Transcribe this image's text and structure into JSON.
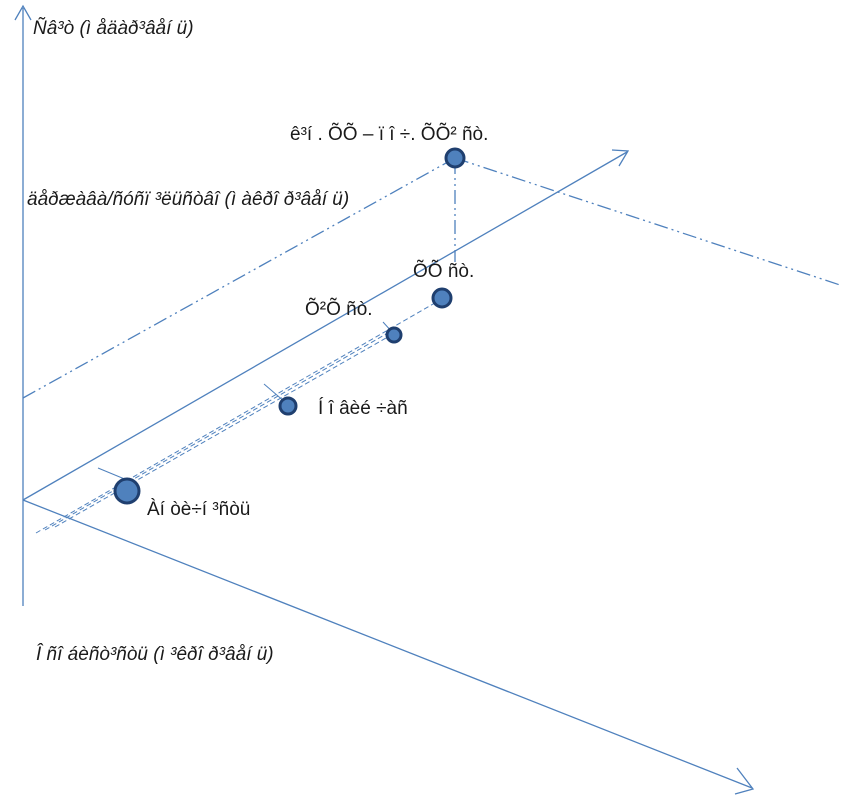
{
  "axes": {
    "y_label": "Ñâ³ò (ì åäàð³âåí ü)",
    "x_label": "Î ñî áèñò³ñòü (ì ³êðî ð³âåí ü)",
    "diagonal_label": "äåðæàâà/ñóñï ³ëüñòâî (ì àêðî ð³âåí ü)"
  },
  "nodes": [
    {
      "label": "Àí òè÷í ³ñòü"
    },
    {
      "label": "Í î âèé ÷àñ"
    },
    {
      "label": "Õ²Õ ñò."
    },
    {
      "label": "ÕÕ ñò."
    },
    {
      "label": "ê³í . ÕÕ – ï î ÷. ÕÕ² ñò."
    }
  ],
  "colors": {
    "line": "#4f81bd",
    "node_fill": "#4f81bd",
    "node_stroke": "#1f3f6f"
  }
}
